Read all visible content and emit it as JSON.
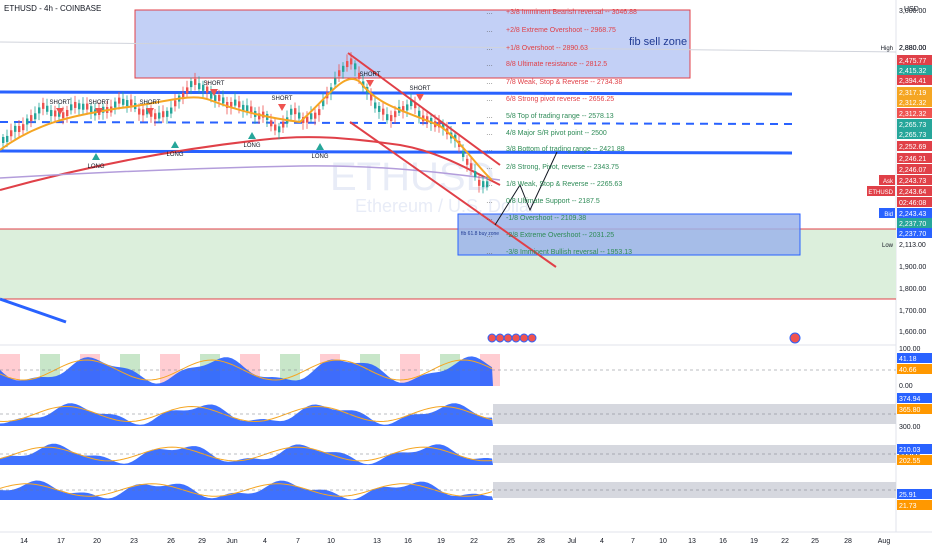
{
  "header": {
    "symbol_line": "ETHUSD - 4h - COINBASE",
    "currency": "USD"
  },
  "colors": {
    "sell_zone_fill": "#b9c8f5",
    "sell_zone_border": "#e04048",
    "buy_zone_fill": "#9cb4ea",
    "buy_zone_border": "#2962ff",
    "green_zone_fill": "#dcefdc",
    "green_zone_border": "#e04048",
    "trend_line": "#e04048",
    "blue_level": "#2962ff",
    "ma_red": "#e04048",
    "ma_purple": "#b39ddb",
    "up_candle": "#26a69a",
    "down_candle": "#ef5350",
    "short_marker": "#ef5350",
    "long_marker": "#26a69a"
  },
  "zones": {
    "sell": "fib sell zone",
    "buy": "fib 61.8 buy zone"
  },
  "chart_data": {
    "type": "candlestick",
    "timeframe": "4h",
    "x_tick_labels": [
      "14",
      "17",
      "20",
      "23",
      "26",
      "29",
      "Jun",
      "4",
      "7",
      "10",
      "13",
      "16",
      "19",
      "22",
      "25",
      "28",
      "Jul",
      "4",
      "7",
      "10",
      "13",
      "16",
      "19",
      "22",
      "25",
      "28",
      "Aug"
    ],
    "y_tick_labels": [
      "3,000.00",
      "2,880.00",
      "1,900.00",
      "1,800.00",
      "1,700.00",
      "1,600.00"
    ],
    "ylim": [
      1550,
      3050
    ],
    "price_tags": [
      {
        "label": "High",
        "value": "2,880.00"
      },
      {
        "label": "",
        "value": "2,475.77"
      },
      {
        "label": "",
        "value": "2,415.32"
      },
      {
        "label": "",
        "value": "2,394.41"
      },
      {
        "label": "",
        "value": "2,317.19"
      },
      {
        "label": "",
        "value": "2,312.32"
      },
      {
        "label": "",
        "value": "2,312.32"
      },
      {
        "label": "",
        "value": "2,265.73"
      },
      {
        "label": "",
        "value": "2,265.73"
      },
      {
        "label": "",
        "value": "2,252.69"
      },
      {
        "label": "",
        "value": "2,246.21"
      },
      {
        "label": "",
        "value": "2,246.07"
      },
      {
        "label": "Ask",
        "value": "2,243.73"
      },
      {
        "label": "ETHUSD",
        "value": "2,243.64"
      },
      {
        "label": "",
        "value": "02:46:08"
      },
      {
        "label": "Bid",
        "value": "2,243.43"
      },
      {
        "label": "",
        "value": "2,237.70"
      },
      {
        "label": "",
        "value": "2,237.70"
      },
      {
        "label": "Low",
        "value": "2,113.00"
      }
    ],
    "fib_levels": [
      {
        "label": "+3/8 Imminent Bearish reversal",
        "value": "3046.88"
      },
      {
        "label": "+2/8 Extreme Overshoot",
        "value": "2968.75"
      },
      {
        "label": "+1/8 Overshoot",
        "value": "2890.63"
      },
      {
        "label": "8/8 Ultimate resistance",
        "value": "2812.5"
      },
      {
        "label": "7/8 Weak, Stop & Reverse",
        "value": "2734.38"
      },
      {
        "label": "6/8 Strong pivot reverse",
        "value": "2656.25"
      },
      {
        "label": "5/8 Top of trading range",
        "value": "2578.13"
      },
      {
        "label": "4/8 Major S/R pivot point",
        "value": "2500"
      },
      {
        "label": "3/8 Bottom of trading range",
        "value": "2421.88"
      },
      {
        "label": "2/8 Strong, Pivot, reverse",
        "value": "2343.75"
      },
      {
        "label": "1/8 Weak, Stop & Reverse",
        "value": "2265.63"
      },
      {
        "label": "0/8 Ultimate Support",
        "value": "2187.5"
      },
      {
        "label": "-1/8 Overshoot",
        "value": "2109.38"
      },
      {
        "label": "-2/8 Extreme Overshoot",
        "value": "2031.25"
      },
      {
        "label": "-3/8 Imminent Bullish reversal",
        "value": "1953.13"
      }
    ],
    "signals": [
      {
        "label": "SHORT"
      },
      {
        "label": "SHORT"
      },
      {
        "label": "SHORT"
      },
      {
        "label": "SHORT"
      },
      {
        "label": "SHORT"
      },
      {
        "label": "SHORT"
      },
      {
        "label": "SHORT"
      },
      {
        "label": "LONG"
      },
      {
        "label": "LONG"
      },
      {
        "label": "LONG"
      },
      {
        "label": "LONG"
      }
    ],
    "indicators": [
      {
        "ticks": [
          "100.00",
          "50.00",
          "0.00"
        ],
        "tags": [
          "41.18",
          "40.66"
        ]
      },
      {
        "ticks": [
          "300.00"
        ],
        "tags": [
          "374.94",
          "365.80"
        ]
      },
      {
        "ticks": [
          "200.00"
        ],
        "tags": [
          "210.03",
          "202.55"
        ]
      },
      {
        "ticks": [
          "0.00"
        ],
        "tags": [
          "25.91",
          "21.73"
        ]
      }
    ]
  }
}
